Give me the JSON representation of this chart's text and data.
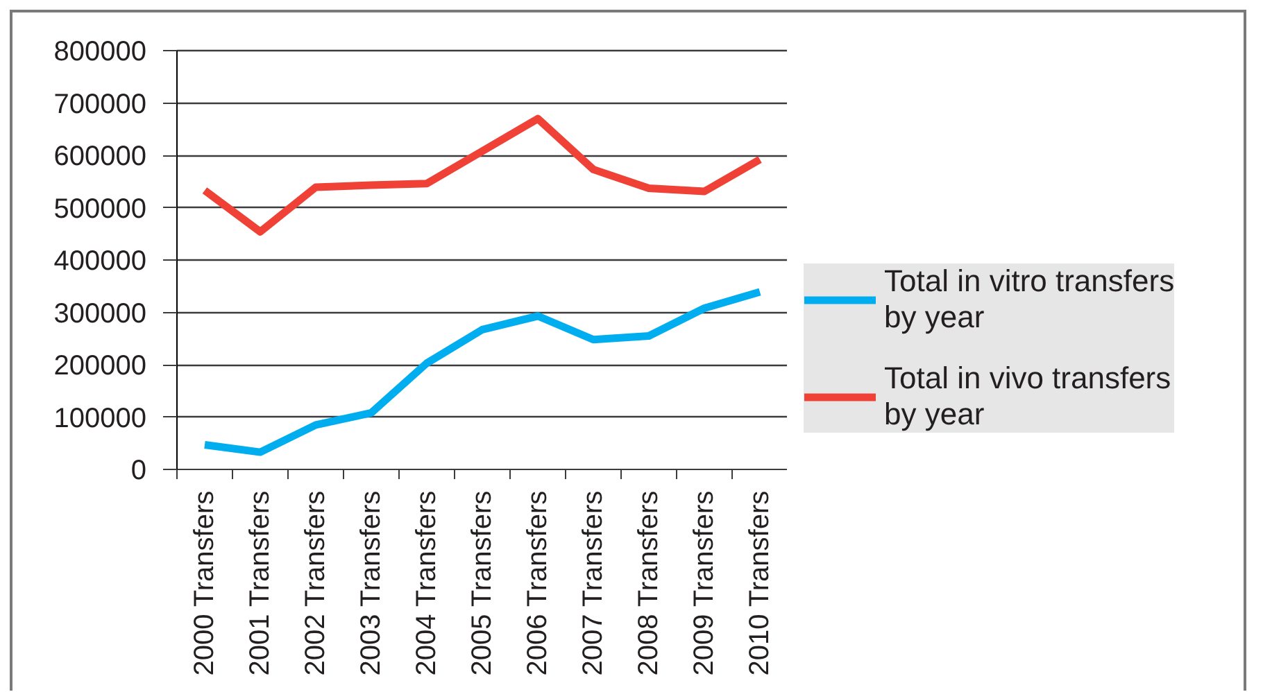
{
  "chart_data": {
    "type": "line",
    "categories": [
      "2000 Transfers",
      "2001 Transfers",
      "2002 Transfers",
      "2003 Transfers",
      "2004 Transfers",
      "2005 Transfers",
      "2006 Transfers",
      "2007 Transfers",
      "2008 Transfers",
      "2009 Transfers",
      "2010 Transfers"
    ],
    "series": [
      {
        "name": "Total in vitro transfers by year",
        "color": "#00aeef",
        "values": [
          47000,
          33000,
          85000,
          108000,
          203000,
          267000,
          293000,
          248000,
          255000,
          308000,
          339000
        ]
      },
      {
        "name": "Total in vivo transfers by year",
        "color": "#ef4136",
        "values": [
          533000,
          454000,
          539000,
          543000,
          546000,
          608000,
          670000,
          573000,
          537000,
          531000,
          592000
        ]
      }
    ],
    "ylim": [
      0,
      800000
    ],
    "yticks": [
      0,
      100000,
      200000,
      300000,
      400000,
      500000,
      600000,
      700000,
      800000
    ],
    "grid": "y",
    "legend": "right",
    "marker": "none",
    "line_style": "solid"
  }
}
